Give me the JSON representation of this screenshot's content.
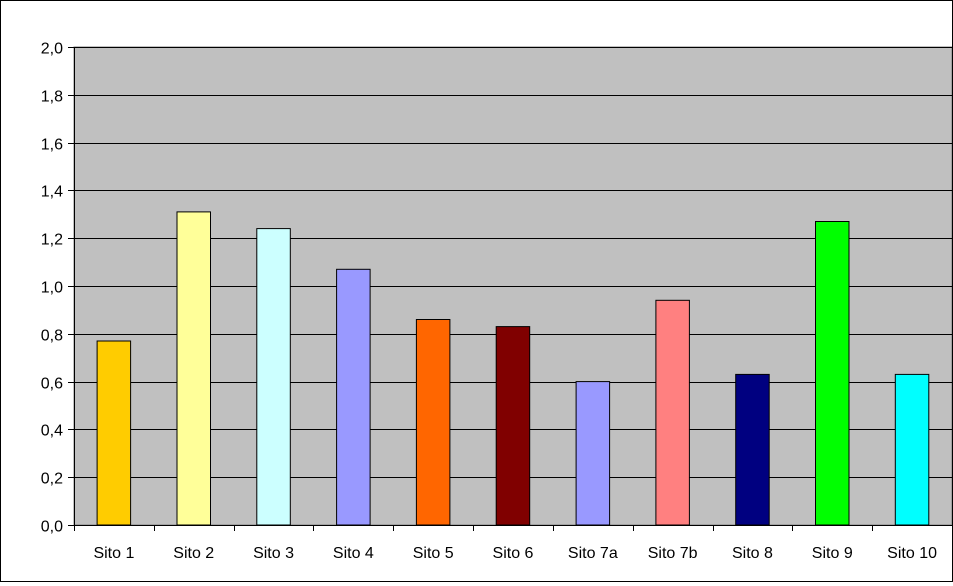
{
  "chart_data": {
    "type": "bar",
    "categories": [
      "Sito 1",
      "Sito 2",
      "Sito 3",
      "Sito 4",
      "Sito 5",
      "Sito 6",
      "Sito 7a",
      "Sito 7b",
      "Sito 8",
      "Sito 9",
      "Sito 10"
    ],
    "values": [
      0.77,
      1.31,
      1.24,
      1.07,
      0.86,
      0.83,
      0.6,
      0.94,
      0.63,
      1.27,
      0.63
    ],
    "colors": [
      "#FFCC00",
      "#FFFF99",
      "#CCFFFF",
      "#9999FF",
      "#FF6600",
      "#800000",
      "#9999FF",
      "#FF8080",
      "#000080",
      "#00FF00",
      "#00FFFF"
    ],
    "ylim": [
      0,
      2.0
    ],
    "yticks": [
      "0,0",
      "0,2",
      "0,4",
      "0,6",
      "0,8",
      "1,0",
      "1,2",
      "1,4",
      "1,6",
      "1,8",
      "2,0"
    ],
    "plot_background": "#C0C0C0",
    "grid": true,
    "legend": "none",
    "title": "",
    "xlabel": "",
    "ylabel": ""
  }
}
